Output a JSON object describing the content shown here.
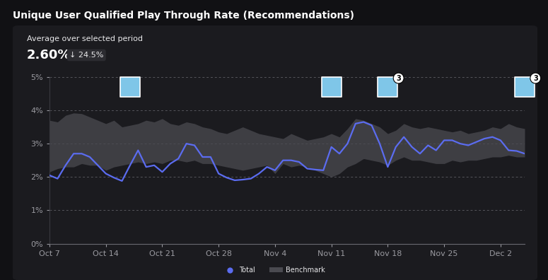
{
  "chart_data": {
    "type": "line",
    "title": "Unique User Qualified Play Through Rate (Recommendations)",
    "subtitle": "Average over selected period",
    "average": {
      "value": 2.6,
      "label": "2.60%"
    },
    "change": {
      "value": -24.5,
      "label": "↓ 24.5%"
    },
    "categories": [
      "Oct 7",
      null,
      null,
      null,
      null,
      null,
      null,
      "Oct 14",
      null,
      null,
      null,
      null,
      null,
      null,
      "Oct 21",
      null,
      null,
      null,
      null,
      null,
      null,
      "Oct 28",
      null,
      null,
      null,
      null,
      null,
      null,
      "Nov 4",
      null,
      null,
      null,
      null,
      null,
      null,
      "Nov 11",
      null,
      null,
      null,
      null,
      null,
      null,
      "Nov 18",
      null,
      null,
      null,
      null,
      null,
      null,
      "Nov 25",
      null,
      null,
      null,
      null,
      null,
      null,
      "Dec 2",
      null,
      null,
      null
    ],
    "series": [
      {
        "name": "Total",
        "type": "line",
        "color": "#5b6cf0",
        "values": [
          2.05,
          1.95,
          2.35,
          2.7,
          2.7,
          2.6,
          2.35,
          2.1,
          1.98,
          1.88,
          2.35,
          2.8,
          2.3,
          2.35,
          2.15,
          2.4,
          2.55,
          3.0,
          2.95,
          2.6,
          2.6,
          2.1,
          1.98,
          1.9,
          1.92,
          1.95,
          2.1,
          2.3,
          2.2,
          2.5,
          2.5,
          2.45,
          2.25,
          2.22,
          2.2,
          2.9,
          2.7,
          3.0,
          3.6,
          3.65,
          3.55,
          3.0,
          2.3,
          2.9,
          3.2,
          2.9,
          2.7,
          2.95,
          2.8,
          3.1,
          3.1,
          3.0,
          2.95,
          3.05,
          3.15,
          3.2,
          3.1,
          2.8,
          2.78,
          2.7
        ]
      },
      {
        "name": "Benchmark",
        "type": "band",
        "color": "#4a4a50",
        "low": [
          2.15,
          2.25,
          2.3,
          2.3,
          2.4,
          2.35,
          2.35,
          2.2,
          2.3,
          2.35,
          2.4,
          2.45,
          2.4,
          2.45,
          2.4,
          2.5,
          2.5,
          2.45,
          2.5,
          2.4,
          2.4,
          2.35,
          2.3,
          2.25,
          2.2,
          2.25,
          2.3,
          2.35,
          2.1,
          2.4,
          2.3,
          2.35,
          2.3,
          2.2,
          2.1,
          2.0,
          2.1,
          2.3,
          2.4,
          2.55,
          2.5,
          2.45,
          2.35,
          2.5,
          2.6,
          2.5,
          2.5,
          2.45,
          2.4,
          2.4,
          2.5,
          2.45,
          2.5,
          2.5,
          2.55,
          2.6,
          2.6,
          2.65,
          2.6,
          2.6
        ],
        "high": [
          3.7,
          3.65,
          3.85,
          3.92,
          3.9,
          3.8,
          3.7,
          3.6,
          3.7,
          3.5,
          3.55,
          3.6,
          3.7,
          3.65,
          3.75,
          3.6,
          3.55,
          3.65,
          3.6,
          3.5,
          3.45,
          3.35,
          3.3,
          3.4,
          3.5,
          3.4,
          3.3,
          3.25,
          3.2,
          3.15,
          3.3,
          3.2,
          3.1,
          3.15,
          3.2,
          3.3,
          3.2,
          3.45,
          3.75,
          3.7,
          3.6,
          3.5,
          3.3,
          3.4,
          3.6,
          3.5,
          3.45,
          3.5,
          3.45,
          3.4,
          3.35,
          3.4,
          3.3,
          3.35,
          3.4,
          3.5,
          3.45,
          3.6,
          3.5,
          3.45
        ]
      }
    ],
    "annotations": [
      {
        "position": 10
      },
      {
        "position": 35
      },
      {
        "position": 42,
        "label": "3"
      },
      {
        "position": 59,
        "label": "3"
      }
    ],
    "ylim": [
      0,
      5
    ],
    "yticks": [
      {
        "value": 0,
        "label": "0%"
      },
      {
        "value": 1,
        "label": "1%"
      },
      {
        "value": 2,
        "label": "2%"
      },
      {
        "value": 3,
        "label": "3%"
      },
      {
        "value": 4,
        "label": "4%"
      },
      {
        "value": 5,
        "label": "5%"
      }
    ],
    "grid": true,
    "legend": "lower center"
  }
}
